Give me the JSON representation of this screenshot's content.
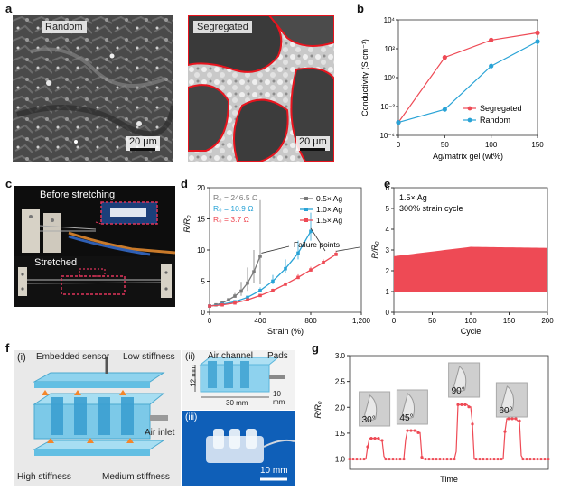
{
  "panel_labels": {
    "a": "a",
    "b": "b",
    "c": "c",
    "d": "d",
    "e": "e",
    "f": "f",
    "g": "g"
  },
  "panel_a": {
    "random_label": "Random",
    "segregated_label": "Segregated",
    "scale_left": "20 μm",
    "scale_right": "20 μm"
  },
  "panel_c": {
    "before_label": "Before stretching",
    "after_label": "Stretched"
  },
  "panel_f": {
    "sub_i": "(i)",
    "sub_ii": "(ii)",
    "sub_iii": "(iii)",
    "embedded_sensor": "Embedded sensor",
    "low_stiffness": "Low stiffness",
    "air_inlet": "Air inlet",
    "high_stiffness": "High stiffness",
    "medium_stiffness": "Medium stiffness",
    "air_channel": "Air channel",
    "pads": "Pads",
    "dim_12": "12 mm",
    "dim_30": "30 mm",
    "dim_10": "10 mm",
    "scale_10mm": "10 mm"
  },
  "colors": {
    "red": "#ee4a55",
    "blue": "#29a3d6",
    "gray": "#7a7a7a",
    "pink": "#f08080"
  },
  "chart_data": [
    {
      "id": "b",
      "type": "line",
      "xlabel": "Ag/matrix gel (wt%)",
      "ylabel": "Conductivity (S cm⁻¹)",
      "yscale": "log",
      "xlim": [
        0,
        150
      ],
      "ylim_exp": [
        -4,
        4
      ],
      "xticks": [
        0,
        50,
        100,
        150
      ],
      "yticks": [
        "10⁻⁴",
        "10⁻²",
        "10⁰",
        "10²",
        "10⁴"
      ],
      "legend_position": "bottom-right",
      "series": [
        {
          "name": "Segregated",
          "color": "#ee4a55",
          "x": [
            0,
            50,
            100,
            150
          ],
          "y_exp": [
            -3.1,
            1.4,
            2.6,
            3.1
          ],
          "err_exp": [
            0,
            0,
            0.1,
            0.15
          ]
        },
        {
          "name": "Random",
          "color": "#29a3d6",
          "x": [
            0,
            50,
            100,
            150
          ],
          "y_exp": [
            -3.1,
            -2.2,
            0.8,
            2.5
          ],
          "err_exp": [
            0,
            0.1,
            0.2,
            0.25
          ]
        }
      ]
    },
    {
      "id": "d",
      "type": "line",
      "xlabel": "Strain (%)",
      "ylabel": "R/R₀",
      "xlim": [
        0,
        1200
      ],
      "ylim": [
        0,
        20
      ],
      "xticks": [
        0,
        400,
        800,
        1200
      ],
      "xtick_labels": [
        "0",
        "400",
        "800",
        "1,200"
      ],
      "yticks": [
        0,
        5,
        10,
        15,
        20
      ],
      "annotation": "Failure points",
      "r0_labels": [
        "R₀ = 246.5 Ω",
        "R₀ = 10.9 Ω",
        "R₀ = 3.7 Ω"
      ],
      "series": [
        {
          "name": "0.5× Ag",
          "color": "#7a7a7a",
          "x": [
            0,
            50,
            100,
            150,
            200,
            250,
            300,
            350,
            400
          ],
          "y": [
            1,
            1.2,
            1.5,
            2,
            2.6,
            3.4,
            4.7,
            6.5,
            9
          ],
          "err": [
            0,
            0,
            0,
            0,
            0.5,
            1.5,
            2.5,
            3.5,
            9
          ]
        },
        {
          "name": "1.0× Ag",
          "color": "#29a3d6",
          "x": [
            0,
            100,
            200,
            300,
            400,
            500,
            600,
            700,
            800
          ],
          "y": [
            1,
            1.3,
            1.7,
            2.4,
            3.5,
            5,
            7,
            9.5,
            13
          ],
          "err": [
            0,
            0,
            0,
            0,
            0.5,
            1,
            1.5,
            2,
            3
          ]
        },
        {
          "name": "1.5× Ag",
          "color": "#ee4a55",
          "x": [
            0,
            100,
            200,
            300,
            400,
            500,
            600,
            700,
            800,
            900,
            1000
          ],
          "y": [
            1,
            1.2,
            1.5,
            2,
            2.7,
            3.5,
            4.5,
            5.6,
            6.8,
            8,
            9.3
          ],
          "err": [
            0,
            0,
            0,
            0,
            0,
            0.3,
            0.3,
            0.5,
            0.5,
            0.5,
            0.6
          ]
        }
      ]
    },
    {
      "id": "e",
      "type": "area",
      "xlabel": "Cycle",
      "ylabel": "R/R₀",
      "xlim": [
        0,
        200
      ],
      "ylim": [
        0,
        6
      ],
      "xticks": [
        0,
        50,
        100,
        150,
        200
      ],
      "yticks": [
        0,
        1,
        2,
        3,
        4,
        5,
        6
      ],
      "label_lines": [
        "1.5× Ag",
        "300% strain cycle"
      ],
      "series": [
        {
          "name": "",
          "color": "#ee4a55",
          "min": 1.0,
          "max_start": 2.7,
          "max_mid": 3.15,
          "max_end": 3.1
        }
      ]
    },
    {
      "id": "g",
      "type": "line",
      "xlabel": "Time",
      "ylabel": "R/R₀",
      "ylim": [
        0.8,
        3.0
      ],
      "yticks": [
        1.0,
        1.5,
        2.0,
        2.5,
        3.0
      ],
      "ytick_labels": [
        "1.0",
        "1.5",
        "2.0",
        "2.5",
        "3.0"
      ],
      "angles": [
        "30°",
        "45°",
        "90°",
        "60°"
      ],
      "series": [
        {
          "name": "",
          "color": "#ee4a55",
          "peaks": [
            1.4,
            1.55,
            2.05,
            1.78
          ]
        }
      ]
    }
  ]
}
